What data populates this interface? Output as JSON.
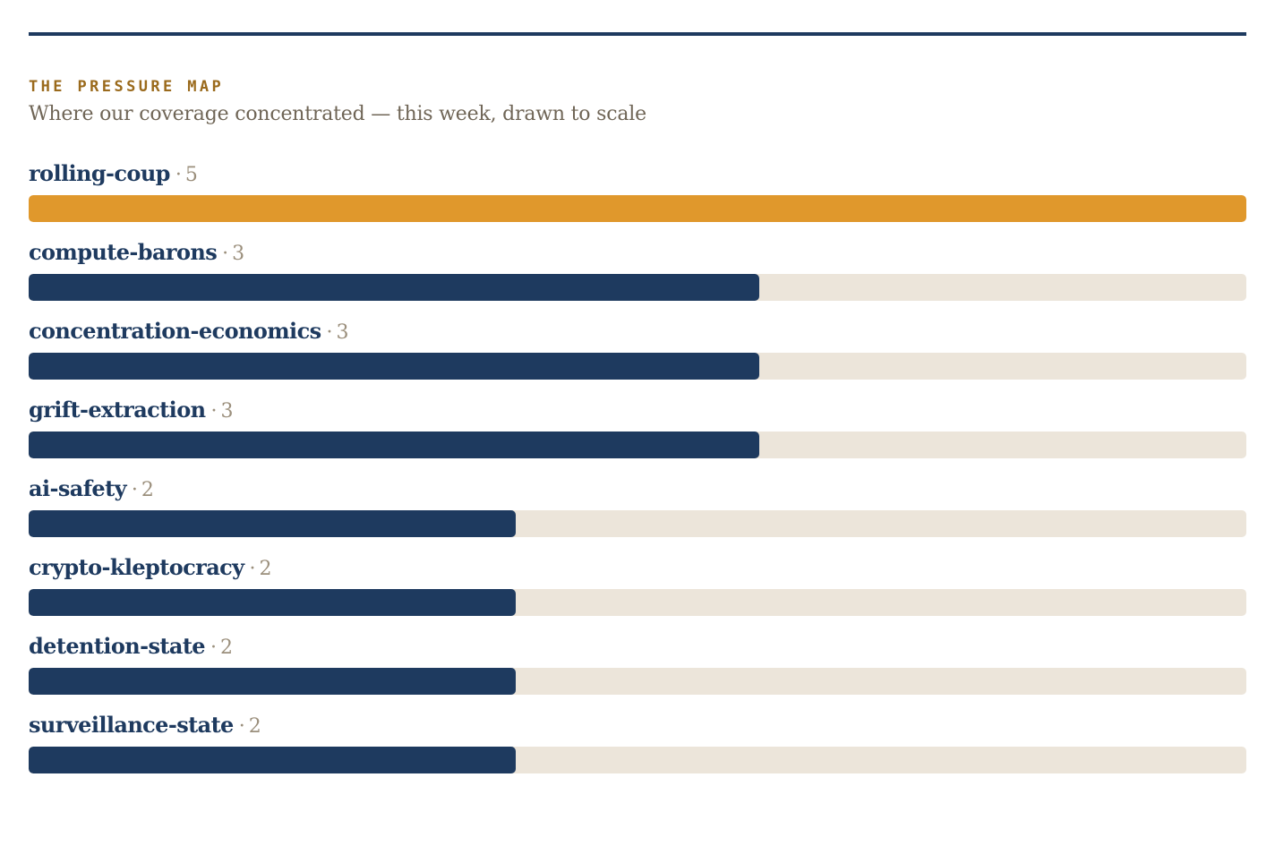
{
  "header": {
    "kicker": "THE PRESSURE MAP",
    "subtitle": "Where our coverage concentrated — this week, drawn to scale"
  },
  "colors": {
    "rule": "#1e3a5f",
    "top_bar": "#e0982c",
    "bar": "#1e3a5f",
    "track": "#ece5da",
    "label": "#1e3a5f",
    "count": "#9b8f7c",
    "kicker": "#9a6a1c"
  },
  "chart_data": {
    "type": "bar",
    "orientation": "horizontal",
    "title": "THE PRESSURE MAP",
    "subtitle": "Where our coverage concentrated — this week, drawn to scale",
    "separator": "·",
    "categories": [
      "rolling-coup",
      "compute-barons",
      "concentration-economics",
      "grift-extraction",
      "ai-safety",
      "crypto-kleptocracy",
      "detention-state",
      "surveillance-state"
    ],
    "values": [
      5,
      3,
      3,
      3,
      2,
      2,
      2,
      2
    ],
    "xlim": [
      0,
      5
    ],
    "grid": false,
    "legend": "none"
  }
}
